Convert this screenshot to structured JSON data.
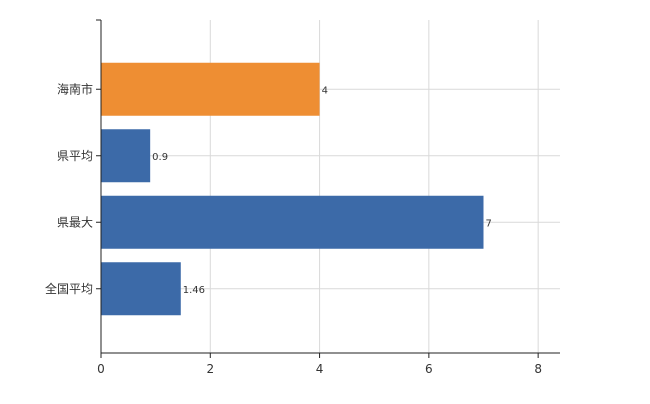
{
  "chart_data": {
    "type": "bar",
    "orientation": "horizontal",
    "categories": [
      "海南市",
      "県平均",
      "県最大",
      "全国平均"
    ],
    "values": [
      4,
      0.9,
      7,
      1.46
    ],
    "value_labels": [
      "4",
      "0.9",
      "7",
      "1.46"
    ],
    "bar_colors": [
      "#ee8e33",
      "#3c6aa8",
      "#3c6aa8",
      "#3c6aa8"
    ],
    "title": "",
    "xlabel": "",
    "ylabel": "",
    "xlim": [
      0,
      8.4
    ],
    "x_ticks": [
      0,
      2,
      4,
      6,
      8
    ],
    "x_tick_labels": [
      "0",
      "2",
      "4",
      "6",
      "8"
    ],
    "grid": true,
    "legend": "none"
  }
}
